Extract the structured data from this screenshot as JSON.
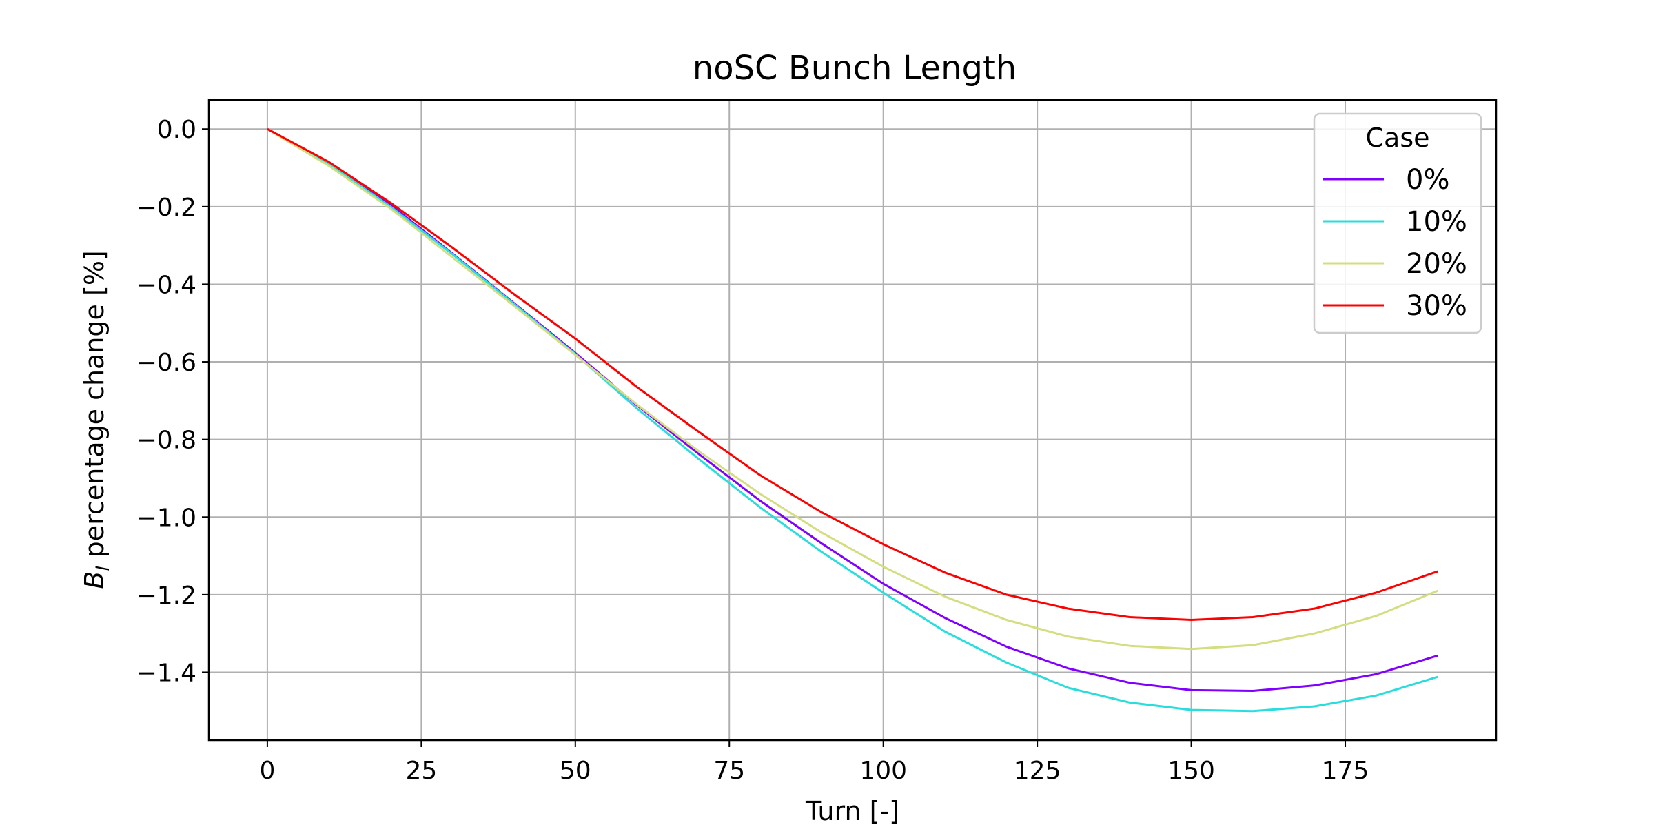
{
  "chart_data": {
    "type": "line",
    "title": "noSC Bunch Length",
    "xlabel": "Turn [-]",
    "ylabel_main": "B",
    "ylabel_sub": "l",
    "ylabel_rest": " percentage change [%]",
    "xlim": [
      -9.5,
      199.5
    ],
    "ylim": [
      -1.575,
      0.075
    ],
    "xticks": [
      0,
      25,
      50,
      75,
      100,
      125,
      150,
      175
    ],
    "xtick_labels": [
      "0",
      "25",
      "50",
      "75",
      "100",
      "125",
      "150",
      "175"
    ],
    "yticks": [
      0.0,
      -0.2,
      -0.4,
      -0.6,
      -0.8,
      -1.0,
      -1.2,
      -1.4
    ],
    "ytick_labels": [
      "0.0",
      "−0.2",
      "−0.4",
      "−0.6",
      "−0.8",
      "−1.0",
      "−1.2",
      "−1.4"
    ],
    "grid": true,
    "legend": {
      "title": "Case",
      "placement": "upper right"
    },
    "x": [
      0,
      10,
      20,
      30,
      40,
      50,
      60,
      70,
      80,
      90,
      100,
      110,
      120,
      130,
      140,
      150,
      160,
      170,
      180,
      190
    ],
    "series": [
      {
        "name": "0%",
        "color": "#8000ff",
        "values": [
          0.0,
          -0.087,
          -0.195,
          -0.32,
          -0.448,
          -0.577,
          -0.712,
          -0.837,
          -0.958,
          -1.068,
          -1.172,
          -1.26,
          -1.334,
          -1.39,
          -1.427,
          -1.446,
          -1.448,
          -1.434,
          -1.405,
          -1.357
        ]
      },
      {
        "name": "10%",
        "color": "#2adddd",
        "values": [
          0.0,
          -0.09,
          -0.2,
          -0.322,
          -0.45,
          -0.58,
          -0.72,
          -0.85,
          -0.975,
          -1.09,
          -1.195,
          -1.295,
          -1.375,
          -1.44,
          -1.478,
          -1.497,
          -1.5,
          -1.488,
          -1.46,
          -1.412
        ]
      },
      {
        "name": "20%",
        "color": "#d4dd80",
        "values": [
          0.0,
          -0.095,
          -0.205,
          -0.33,
          -0.455,
          -0.582,
          -0.71,
          -0.83,
          -0.94,
          -1.04,
          -1.128,
          -1.205,
          -1.265,
          -1.308,
          -1.332,
          -1.34,
          -1.33,
          -1.3,
          -1.255,
          -1.19
        ]
      },
      {
        "name": "30%",
        "color": "#ff0000",
        "values": [
          0.0,
          -0.085,
          -0.19,
          -0.305,
          -0.425,
          -0.54,
          -0.665,
          -0.78,
          -0.892,
          -0.988,
          -1.07,
          -1.143,
          -1.2,
          -1.236,
          -1.258,
          -1.265,
          -1.258,
          -1.236,
          -1.195,
          -1.14
        ]
      }
    ]
  }
}
